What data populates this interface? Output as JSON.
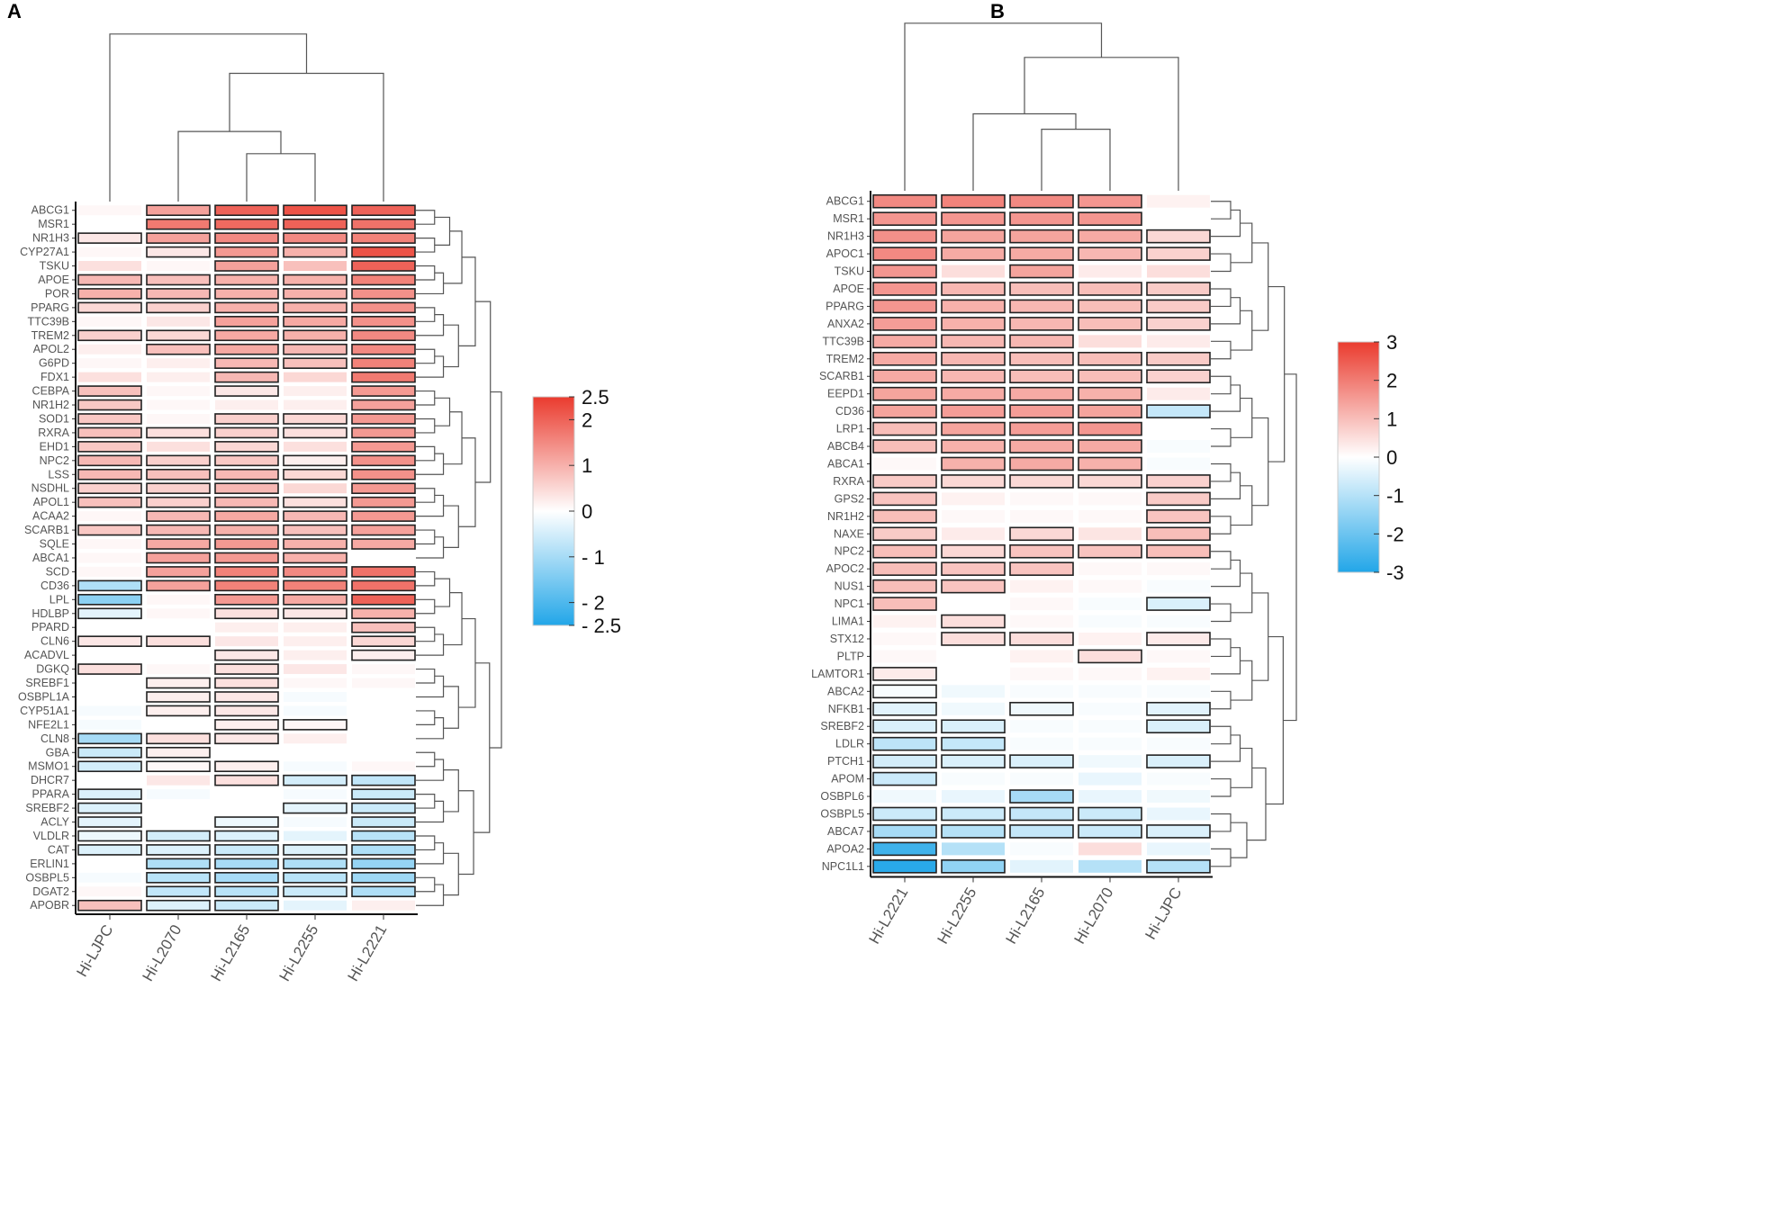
{
  "chart_data": [
    {
      "panel": "A",
      "type": "heatmap",
      "columns": [
        "Hi-LJPC",
        "Hi-L2070",
        "Hi-L2165",
        "Hi-L2255",
        "Hi-L2221"
      ],
      "rows": [
        "ABCG1",
        "MSR1",
        "NR1H3",
        "CYP27A1",
        "TSKU",
        "APOE",
        "POR",
        "PPARG",
        "TTC39B",
        "TREM2",
        "APOL2",
        "G6PD",
        "FDX1",
        "CEBPA",
        "NR1H2",
        "SOD1",
        "RXRA",
        "EHD1",
        "NPC2",
        "LSS",
        "NSDHL",
        "APOL1",
        "ACAA2",
        "SCARB1",
        "SQLE",
        "ABCA1",
        "SCD",
        "CD36",
        "LPL",
        "HDLBP",
        "PPARD",
        "CLN6",
        "ACADVL",
        "DGKQ",
        "SREBF1",
        "OSBPL1A",
        "CYP51A1",
        "NFE2L1",
        "CLN8",
        "GBA",
        "MSMO1",
        "DHCR7",
        "PPARA",
        "SREBF2",
        "ACLY",
        "VLDLR",
        "CAT",
        "ERLIN1",
        "OSBPL5",
        "DGAT2",
        "APOBR"
      ],
      "values": [
        [
          0.1,
          1.2,
          2.0,
          2.2,
          2.0
        ],
        [
          0.0,
          1.7,
          1.9,
          2.0,
          1.8
        ],
        [
          0.3,
          1.2,
          1.5,
          1.5,
          1.6
        ],
        [
          0.1,
          0.3,
          1.3,
          1.0,
          2.2
        ],
        [
          0.4,
          0.1,
          1.2,
          0.8,
          2.0
        ],
        [
          0.9,
          0.8,
          1.0,
          1.0,
          1.6
        ],
        [
          1.0,
          0.9,
          1.0,
          1.0,
          1.4
        ],
        [
          0.5,
          0.6,
          1.0,
          1.0,
          1.4
        ],
        [
          0.1,
          0.3,
          1.2,
          1.1,
          1.4
        ],
        [
          0.6,
          0.5,
          1.1,
          1.0,
          1.5
        ],
        [
          0.2,
          0.8,
          1.1,
          0.9,
          1.5
        ],
        [
          0.1,
          0.2,
          0.9,
          0.8,
          1.6
        ],
        [
          0.4,
          0.2,
          0.9,
          0.5,
          1.7
        ],
        [
          0.8,
          0.1,
          0.3,
          0.2,
          1.3
        ],
        [
          0.7,
          0.1,
          0.2,
          0.2,
          1.2
        ],
        [
          0.7,
          0.1,
          0.6,
          0.5,
          1.3
        ],
        [
          0.8,
          0.4,
          0.6,
          0.4,
          1.3
        ],
        [
          0.7,
          0.4,
          0.5,
          0.4,
          1.3
        ],
        [
          0.9,
          0.6,
          0.7,
          0.2,
          1.4
        ],
        [
          0.9,
          0.8,
          0.9,
          0.5,
          1.4
        ],
        [
          0.6,
          0.6,
          0.9,
          0.5,
          1.3
        ],
        [
          0.8,
          0.6,
          0.9,
          0.4,
          1.3
        ],
        [
          0.1,
          0.9,
          1.1,
          0.9,
          1.3
        ],
        [
          0.7,
          0.9,
          1.0,
          0.8,
          1.2
        ],
        [
          0.1,
          1.1,
          1.3,
          1.0,
          1.1
        ],
        [
          0.1,
          1.2,
          1.3,
          1.0,
          0.0
        ],
        [
          0.1,
          1.2,
          1.6,
          1.5,
          1.8
        ],
        [
          -0.9,
          1.2,
          1.6,
          1.6,
          1.8
        ],
        [
          -1.3,
          0.1,
          1.3,
          1.1,
          2.0
        ],
        [
          -0.3,
          0.1,
          0.4,
          0.3,
          1.0
        ],
        [
          0.0,
          0.0,
          0.2,
          0.2,
          0.8
        ],
        [
          0.3,
          0.4,
          0.3,
          0.2,
          0.5
        ],
        [
          0.0,
          0.0,
          0.3,
          0.2,
          0.2
        ],
        [
          0.4,
          0.1,
          0.4,
          0.3,
          0.1
        ],
        [
          0.0,
          0.2,
          0.4,
          0.1,
          0.1
        ],
        [
          0.0,
          0.2,
          0.3,
          -0.1,
          0.0
        ],
        [
          -0.1,
          0.2,
          0.3,
          -0.1,
          0.0
        ],
        [
          -0.1,
          0.0,
          0.2,
          0.1,
          0.0
        ],
        [
          -1.0,
          0.4,
          0.3,
          0.2,
          0.0
        ],
        [
          -0.6,
          0.2,
          0.0,
          0.0,
          0.0
        ],
        [
          -0.5,
          0.1,
          0.2,
          -0.1,
          0.1
        ],
        [
          0.0,
          0.3,
          0.4,
          -0.5,
          -0.7
        ],
        [
          -0.4,
          -0.1,
          0.0,
          -0.1,
          -0.6
        ],
        [
          -0.4,
          0.0,
          0.0,
          -0.3,
          -0.6
        ],
        [
          -0.3,
          0.0,
          -0.2,
          -0.1,
          -0.6
        ],
        [
          -0.2,
          -0.5,
          -0.4,
          -0.3,
          -0.8
        ],
        [
          -0.4,
          -0.4,
          -0.6,
          -0.4,
          -0.9
        ],
        [
          0.0,
          -0.9,
          -1.0,
          -0.9,
          -1.2
        ],
        [
          -0.1,
          -0.8,
          -1.0,
          -0.8,
          -1.1
        ],
        [
          0.1,
          -0.7,
          -0.8,
          -0.6,
          -0.9
        ],
        [
          0.8,
          -0.4,
          -0.6,
          -0.3,
          0.2
        ]
      ],
      "significant": [
        [
          0,
          1,
          1,
          1,
          1
        ],
        [
          0,
          1,
          1,
          1,
          1
        ],
        [
          1,
          1,
          1,
          1,
          1
        ],
        [
          0,
          1,
          1,
          1,
          1
        ],
        [
          0,
          0,
          1,
          0,
          1
        ],
        [
          1,
          1,
          1,
          1,
          1
        ],
        [
          1,
          1,
          1,
          1,
          1
        ],
        [
          1,
          1,
          1,
          1,
          1
        ],
        [
          0,
          0,
          1,
          1,
          1
        ],
        [
          1,
          1,
          1,
          1,
          1
        ],
        [
          0,
          1,
          1,
          1,
          1
        ],
        [
          0,
          0,
          1,
          1,
          1
        ],
        [
          0,
          0,
          1,
          0,
          1
        ],
        [
          1,
          0,
          1,
          0,
          1
        ],
        [
          1,
          0,
          0,
          0,
          1
        ],
        [
          1,
          0,
          1,
          1,
          1
        ],
        [
          1,
          1,
          1,
          1,
          1
        ],
        [
          1,
          0,
          1,
          0,
          1
        ],
        [
          1,
          1,
          1,
          1,
          1
        ],
        [
          1,
          1,
          1,
          1,
          1
        ],
        [
          1,
          1,
          1,
          0,
          1
        ],
        [
          1,
          1,
          1,
          1,
          1
        ],
        [
          0,
          1,
          1,
          1,
          1
        ],
        [
          1,
          1,
          1,
          1,
          1
        ],
        [
          0,
          1,
          1,
          1,
          1
        ],
        [
          0,
          1,
          1,
          1,
          0
        ],
        [
          0,
          1,
          1,
          1,
          1
        ],
        [
          1,
          1,
          1,
          1,
          1
        ],
        [
          1,
          0,
          1,
          1,
          1
        ],
        [
          1,
          0,
          1,
          1,
          1
        ],
        [
          0,
          0,
          0,
          0,
          1
        ],
        [
          1,
          1,
          0,
          0,
          1
        ],
        [
          0,
          0,
          1,
          0,
          1
        ],
        [
          1,
          0,
          1,
          0,
          0
        ],
        [
          0,
          1,
          1,
          0,
          0
        ],
        [
          0,
          1,
          1,
          0,
          0
        ],
        [
          0,
          1,
          1,
          0,
          0
        ],
        [
          0,
          0,
          1,
          1,
          0
        ],
        [
          1,
          1,
          1,
          0,
          0
        ],
        [
          1,
          1,
          0,
          0,
          0
        ],
        [
          1,
          1,
          1,
          0,
          0
        ],
        [
          0,
          0,
          1,
          1,
          1
        ],
        [
          1,
          0,
          0,
          0,
          1
        ],
        [
          1,
          0,
          0,
          1,
          1
        ],
        [
          1,
          0,
          1,
          0,
          1
        ],
        [
          1,
          1,
          1,
          0,
          1
        ],
        [
          1,
          1,
          1,
          1,
          1
        ],
        [
          0,
          1,
          1,
          1,
          1
        ],
        [
          0,
          1,
          1,
          1,
          1
        ],
        [
          0,
          1,
          1,
          1,
          1
        ],
        [
          1,
          1,
          1,
          0,
          0
        ]
      ],
      "colorbar": {
        "range": [
          -2.5,
          2.5
        ],
        "tick_labels": [
          "2.5",
          "2",
          "1",
          "0",
          "- 1",
          "- 2",
          "- 2.5"
        ],
        "tick_values": [
          2.5,
          2,
          1,
          0,
          -1,
          -2,
          -2.5
        ]
      }
    },
    {
      "panel": "B",
      "type": "heatmap",
      "columns": [
        "Hi-L2221",
        "Hi-L2255",
        "Hi-L2165",
        "Hi-L2070",
        "Hi-LJPC"
      ],
      "rows": [
        "ABCG1",
        "MSR1",
        "NR1H3",
        "APOC1",
        "TSKU",
        "APOE",
        "PPARG",
        "ANXA2",
        "TTC39B",
        "TREM2",
        "SCARB1",
        "EEPD1",
        "CD36",
        "LRP1",
        "ABCB4",
        "ABCA1",
        "RXRA",
        "GPS2",
        "NR1H2",
        "NAXE",
        "NPC2",
        "APOC2",
        "NUS1",
        "NPC1",
        "LIMA1",
        "STX12",
        "PLTP",
        "LAMTOR1",
        "ABCA2",
        "NFKB1",
        "SREBF2",
        "LDLR",
        "PTCH1",
        "APOM",
        "OSBPL6",
        "OSBPL5",
        "ABCA7",
        "APOA2",
        "NPC1L1"
      ],
      "values": [
        [
          1.8,
          1.9,
          1.8,
          1.6,
          0.2
        ],
        [
          1.6,
          1.6,
          1.6,
          1.6,
          0.0
        ],
        [
          1.7,
          1.4,
          1.4,
          1.3,
          0.6
        ],
        [
          1.8,
          1.3,
          1.3,
          1.1,
          0.7
        ],
        [
          1.6,
          0.5,
          1.4,
          0.3,
          0.5
        ],
        [
          1.6,
          1.1,
          1.0,
          1.0,
          0.8
        ],
        [
          1.6,
          1.2,
          1.1,
          1.0,
          0.8
        ],
        [
          1.5,
          1.2,
          1.1,
          1.0,
          0.7
        ],
        [
          1.3,
          1.1,
          1.1,
          0.5,
          0.3
        ],
        [
          1.3,
          1.1,
          1.0,
          1.0,
          0.8
        ],
        [
          1.3,
          1.1,
          1.0,
          1.0,
          0.7
        ],
        [
          1.4,
          1.3,
          1.3,
          1.2,
          0.3
        ],
        [
          1.4,
          1.5,
          1.5,
          1.4,
          -0.8
        ],
        [
          1.0,
          1.4,
          1.5,
          1.6,
          0.0
        ],
        [
          1.0,
          1.2,
          1.3,
          1.3,
          -0.1
        ],
        [
          0.1,
          1.2,
          1.3,
          1.2,
          -0.1
        ],
        [
          0.8,
          0.6,
          0.6,
          0.6,
          0.7
        ],
        [
          0.9,
          0.2,
          0.1,
          0.1,
          0.8
        ],
        [
          1.0,
          0.1,
          0.1,
          0.1,
          0.9
        ],
        [
          0.8,
          0.3,
          0.6,
          0.4,
          1.0
        ],
        [
          1.0,
          0.6,
          0.9,
          0.9,
          1.0
        ],
        [
          1.0,
          0.9,
          0.9,
          0.1,
          0.1
        ],
        [
          1.0,
          0.9,
          0.2,
          0.1,
          -0.1
        ],
        [
          1.0,
          0.0,
          0.1,
          -0.1,
          -0.5
        ],
        [
          0.2,
          0.5,
          0.1,
          -0.1,
          -0.1
        ],
        [
          0.1,
          0.5,
          0.5,
          0.2,
          0.3
        ],
        [
          0.1,
          0.0,
          0.2,
          0.5,
          0.1
        ],
        [
          0.3,
          0.0,
          0.1,
          0.1,
          0.2
        ],
        [
          -0.1,
          -0.2,
          -0.1,
          -0.1,
          -0.1
        ],
        [
          -0.4,
          -0.2,
          -0.2,
          -0.1,
          -0.4
        ],
        [
          -0.5,
          -0.5,
          -0.1,
          -0.1,
          -0.5
        ],
        [
          -0.9,
          -0.8,
          -0.1,
          -0.1,
          -0.1
        ],
        [
          -0.6,
          -0.5,
          -0.5,
          -0.2,
          -0.5
        ],
        [
          -0.7,
          -0.1,
          -0.1,
          -0.3,
          -0.1
        ],
        [
          -0.2,
          -0.3,
          -1.2,
          -0.3,
          -0.2
        ],
        [
          -0.7,
          -0.7,
          -0.8,
          -0.7,
          -0.3
        ],
        [
          -1.2,
          -1.0,
          -0.8,
          -0.7,
          -0.5
        ],
        [
          -2.6,
          -1.0,
          -0.1,
          0.5,
          -0.3
        ],
        [
          -2.9,
          -1.5,
          -0.4,
          -1.0,
          -1.0
        ]
      ],
      "significant": [
        [
          1,
          1,
          1,
          1,
          0
        ],
        [
          1,
          1,
          1,
          1,
          0
        ],
        [
          1,
          1,
          1,
          1,
          1
        ],
        [
          1,
          1,
          1,
          1,
          1
        ],
        [
          1,
          0,
          1,
          0,
          0
        ],
        [
          1,
          1,
          1,
          1,
          1
        ],
        [
          1,
          1,
          1,
          1,
          1
        ],
        [
          1,
          1,
          1,
          1,
          1
        ],
        [
          1,
          1,
          1,
          0,
          0
        ],
        [
          1,
          1,
          1,
          1,
          1
        ],
        [
          1,
          1,
          1,
          1,
          1
        ],
        [
          1,
          1,
          1,
          1,
          0
        ],
        [
          1,
          1,
          1,
          1,
          1
        ],
        [
          1,
          1,
          1,
          1,
          0
        ],
        [
          1,
          1,
          1,
          1,
          0
        ],
        [
          0,
          1,
          1,
          1,
          0
        ],
        [
          1,
          1,
          1,
          1,
          1
        ],
        [
          1,
          0,
          0,
          0,
          1
        ],
        [
          1,
          0,
          0,
          0,
          1
        ],
        [
          1,
          0,
          1,
          0,
          1
        ],
        [
          1,
          1,
          1,
          1,
          1
        ],
        [
          1,
          1,
          1,
          0,
          0
        ],
        [
          1,
          1,
          0,
          0,
          0
        ],
        [
          1,
          0,
          0,
          0,
          1
        ],
        [
          0,
          1,
          0,
          0,
          0
        ],
        [
          0,
          1,
          1,
          0,
          1
        ],
        [
          0,
          0,
          0,
          1,
          0
        ],
        [
          1,
          0,
          0,
          0,
          0
        ],
        [
          1,
          0,
          0,
          0,
          0
        ],
        [
          1,
          0,
          1,
          0,
          1
        ],
        [
          1,
          1,
          0,
          0,
          1
        ],
        [
          1,
          1,
          0,
          0,
          0
        ],
        [
          1,
          1,
          1,
          0,
          1
        ],
        [
          1,
          0,
          0,
          0,
          0
        ],
        [
          0,
          0,
          1,
          0,
          0
        ],
        [
          1,
          1,
          1,
          1,
          0
        ],
        [
          1,
          1,
          1,
          1,
          1
        ],
        [
          1,
          0,
          0,
          0,
          0
        ],
        [
          1,
          1,
          0,
          0,
          1
        ]
      ],
      "colorbar": {
        "range": [
          -3,
          3
        ],
        "tick_labels": [
          "3",
          "2",
          "1",
          "0",
          "-1",
          "-2",
          "-3"
        ],
        "tick_values": [
          3,
          2,
          1,
          0,
          -1,
          -2,
          -3
        ]
      }
    }
  ]
}
